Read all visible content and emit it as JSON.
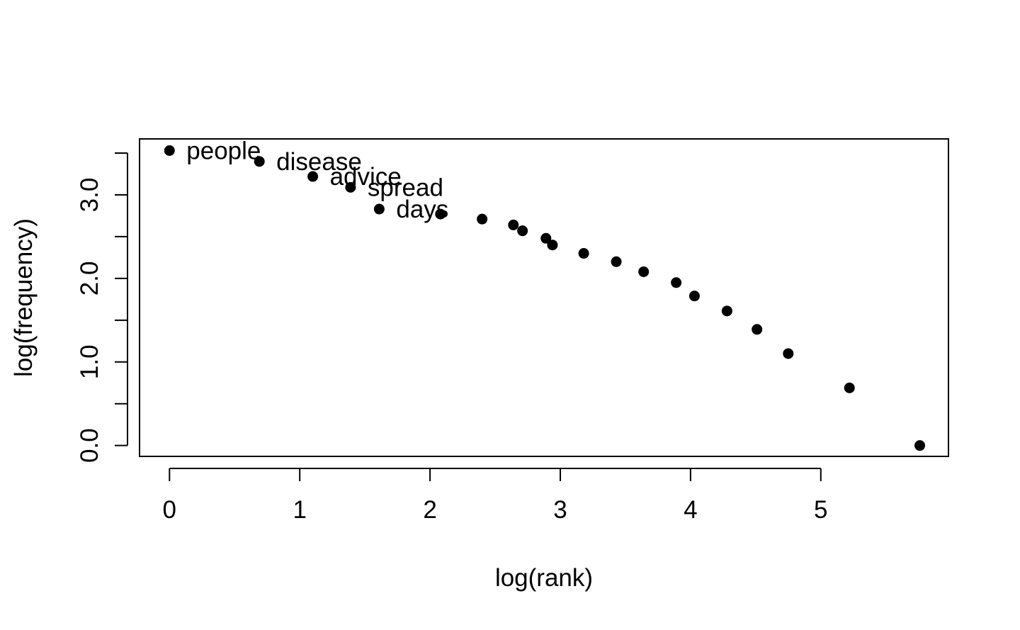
{
  "chart_data": {
    "type": "scatter",
    "title": "",
    "xlabel": "log(rank)",
    "ylabel": "log(frequency)",
    "xlim": [
      -0.23,
      5.98
    ],
    "ylim": [
      -0.13,
      3.67
    ],
    "x_ticks": [
      {
        "value": 0,
        "label": "0"
      },
      {
        "value": 1,
        "label": "1"
      },
      {
        "value": 2,
        "label": "2"
      },
      {
        "value": 3,
        "label": "3"
      },
      {
        "value": 4,
        "label": "4"
      },
      {
        "value": 5,
        "label": "5"
      }
    ],
    "y_ticks": [
      {
        "value": 0.0,
        "label": "0.0"
      },
      {
        "value": 0.5,
        "label": ""
      },
      {
        "value": 1.0,
        "label": "1.0"
      },
      {
        "value": 1.5,
        "label": ""
      },
      {
        "value": 2.0,
        "label": "2.0"
      },
      {
        "value": 2.5,
        "label": ""
      },
      {
        "value": 3.0,
        "label": "3.0"
      },
      {
        "value": 3.5,
        "label": ""
      }
    ],
    "grid": false,
    "legend": "none",
    "point_color": "#000000",
    "points": [
      {
        "x": 0.0,
        "y": 3.53,
        "label": "people"
      },
      {
        "x": 0.69,
        "y": 3.4,
        "label": "disease"
      },
      {
        "x": 1.1,
        "y": 3.22,
        "label": "advice"
      },
      {
        "x": 1.39,
        "y": 3.09,
        "label": "spread"
      },
      {
        "x": 1.61,
        "y": 2.83,
        "label": "days"
      },
      {
        "x": 2.08,
        "y": 2.77
      },
      {
        "x": 2.4,
        "y": 2.71
      },
      {
        "x": 2.64,
        "y": 2.64
      },
      {
        "x": 2.71,
        "y": 2.57
      },
      {
        "x": 2.89,
        "y": 2.48
      },
      {
        "x": 2.94,
        "y": 2.4
      },
      {
        "x": 3.18,
        "y": 2.3
      },
      {
        "x": 3.43,
        "y": 2.2
      },
      {
        "x": 3.64,
        "y": 2.08
      },
      {
        "x": 3.89,
        "y": 1.95
      },
      {
        "x": 4.03,
        "y": 1.79
      },
      {
        "x": 4.28,
        "y": 1.61
      },
      {
        "x": 4.51,
        "y": 1.39
      },
      {
        "x": 4.75,
        "y": 1.1
      },
      {
        "x": 5.22,
        "y": 0.69
      },
      {
        "x": 5.76,
        "y": 0.0
      }
    ]
  }
}
